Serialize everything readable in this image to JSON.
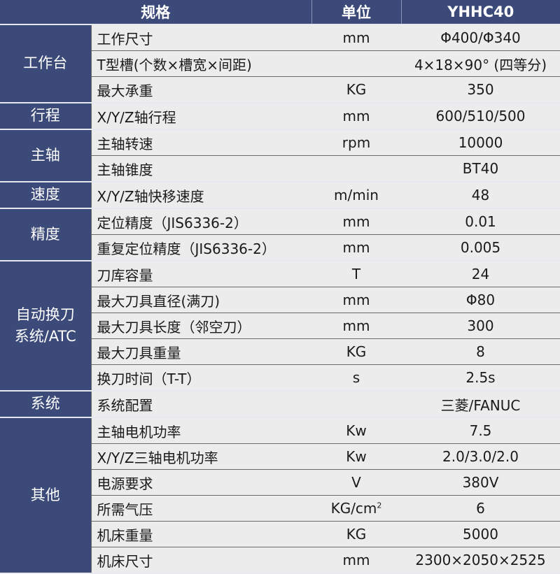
{
  "header": {
    "spec": "规格",
    "unit": "单位",
    "model": "YHHC40"
  },
  "colors": {
    "navy": "#3b4a78",
    "row_bg": "#ececec"
  },
  "groups": [
    {
      "category": "工作台",
      "rows": [
        {
          "name": "工作尺寸",
          "unit": "mm",
          "value": "Φ400/Φ340"
        },
        {
          "name": "T型槽(个数×槽宽×间距)",
          "unit": "",
          "value": "4×18×90° (四等分)"
        },
        {
          "name": "最大承重",
          "unit": "KG",
          "value": "350"
        }
      ]
    },
    {
      "category": "行程",
      "rows": [
        {
          "name": "X/Y/Z轴行程",
          "unit": "mm",
          "value": "600/510/500"
        }
      ]
    },
    {
      "category": "主轴",
      "rows": [
        {
          "name": "主轴转速",
          "unit": "rpm",
          "value": "10000"
        },
        {
          "name": "主轴锥度",
          "unit": "",
          "value": "BT40"
        }
      ]
    },
    {
      "category": "速度",
      "rows": [
        {
          "name": "X/Y/Z轴快移速度",
          "unit": "m/min",
          "value": "48"
        }
      ]
    },
    {
      "category": "精度",
      "rows": [
        {
          "name": "定位精度（JIS6336-2）",
          "unit": "mm",
          "value": "0.01"
        },
        {
          "name": "重复定位精度（JIS6336-2）",
          "unit": "mm",
          "value": "0.005"
        }
      ]
    },
    {
      "category": "自动换刀\n系统/ATC",
      "rows": [
        {
          "name": "刀库容量",
          "unit": "T",
          "value": "24"
        },
        {
          "name": "最大刀具直径(满刀)",
          "unit": "mm",
          "value": "Φ80"
        },
        {
          "name": "最大刀具长度（邻空刀）",
          "unit": "mm",
          "value": "300"
        },
        {
          "name": "最大刀具重量",
          "unit": "KG",
          "value": "8"
        },
        {
          "name": "换刀时间（T-T）",
          "unit": "s",
          "value": "2.5s"
        }
      ]
    },
    {
      "category": "系统",
      "rows": [
        {
          "name": "系统配置",
          "unit": "",
          "value": "三菱/FANUC"
        }
      ]
    },
    {
      "category": "其他",
      "rows": [
        {
          "name": "主轴电机功率",
          "unit": "Kw",
          "value": "7.5"
        },
        {
          "name": "X/Y/Z三轴电机功率",
          "unit": "Kw",
          "value": "2.0/3.0/2.0"
        },
        {
          "name": "电源要求",
          "unit": "V",
          "value": "380V"
        },
        {
          "name": "所需气压",
          "unit": "KG/cm",
          "unit_sup": "2",
          "value": "6"
        },
        {
          "name": "机床重量",
          "unit": "KG",
          "value": "5000"
        },
        {
          "name": "机床尺寸",
          "unit": "mm",
          "value": "2300×2050×2525"
        }
      ]
    }
  ]
}
